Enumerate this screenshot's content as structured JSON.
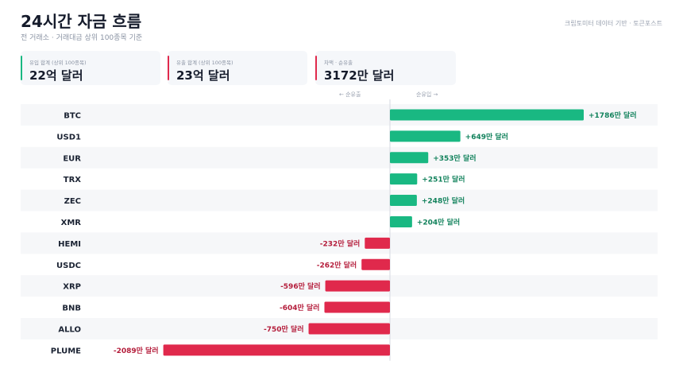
{
  "header": {
    "title": "24시간 자금 흐름",
    "subtitle": "전 거래소 · 거래대금 상위 100종목 기준",
    "source": "크립토미터 데이터 기반 · 토큰포스트"
  },
  "cards": [
    {
      "label": "유입 합계 (상위 100종목)",
      "value": "22억 달러",
      "accent": "#19b882"
    },
    {
      "label": "유출 합계 (상위 100종목)",
      "value": "23억 달러",
      "accent": "#e0294c"
    },
    {
      "label": "차액 · 순유출",
      "value": "3172만 달러",
      "accent": "#e0294c"
    }
  ],
  "direction_labels": {
    "outflow": "← 순유출",
    "inflow": "순유입 →"
  },
  "chart_data": {
    "type": "bar",
    "orientation": "horizontal",
    "unit": "만 달러",
    "categories": [
      "BTC",
      "USD1",
      "EUR",
      "TRX",
      "ZEC",
      "XMR",
      "HEMI",
      "USDC",
      "XRP",
      "BNB",
      "ALLO",
      "PLUME"
    ],
    "values": [
      1786,
      649,
      353,
      251,
      248,
      204,
      -232,
      -262,
      -596,
      -604,
      -750,
      -2089
    ],
    "value_labels": [
      "+1786만 달러",
      "+649만 달러",
      "+353만 달러",
      "+251만 달러",
      "+248만 달러",
      "+204만 달러",
      "-232만 달러",
      "-262만 달러",
      "-596만 달러",
      "-604만 달러",
      "-750만 달러",
      "-2089만 달러"
    ],
    "colors": {
      "positive": "#19b882",
      "negative": "#e0294c",
      "positive_text": "#12825c",
      "negative_text": "#b41d3b"
    }
  }
}
